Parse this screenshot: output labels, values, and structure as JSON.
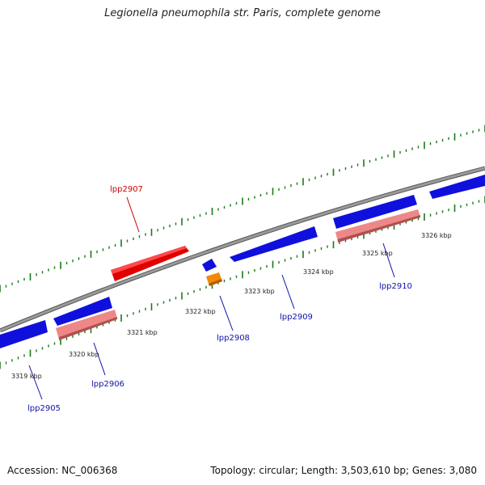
{
  "title": "Legionella pneumophila str. Paris, complete genome",
  "footer": {
    "accession": "Accession: NC_006368",
    "topology": "Topology: circular; Length: 3,503,610 bp; Genes: 3,080"
  },
  "colors": {
    "backbone": "#8a8a8a",
    "forward_gene": "#ee0000",
    "reverse_gene": "#1010dd",
    "pseudo_gene": "#ee8888",
    "other_gene": "#f08a00",
    "tick": "#1a7a1a",
    "label_forward": "#cc0000",
    "label_reverse": "#1010aa"
  },
  "scale_labels": [
    "3319 kbp",
    "3320 kbp",
    "3321 kbp",
    "3322 kbp",
    "3323 kbp",
    "3324 kbp",
    "3325 kbp",
    "3326 kbp"
  ],
  "genes": [
    {
      "label": "lpp2905",
      "strand": "reverse"
    },
    {
      "label": "lpp2906",
      "strand": "reverse"
    },
    {
      "label": "lpp2907",
      "strand": "forward"
    },
    {
      "label": "lpp2908",
      "strand": "reverse"
    },
    {
      "label": "lpp2909",
      "strand": "reverse"
    },
    {
      "label": "lpp2910",
      "strand": "reverse"
    }
  ]
}
